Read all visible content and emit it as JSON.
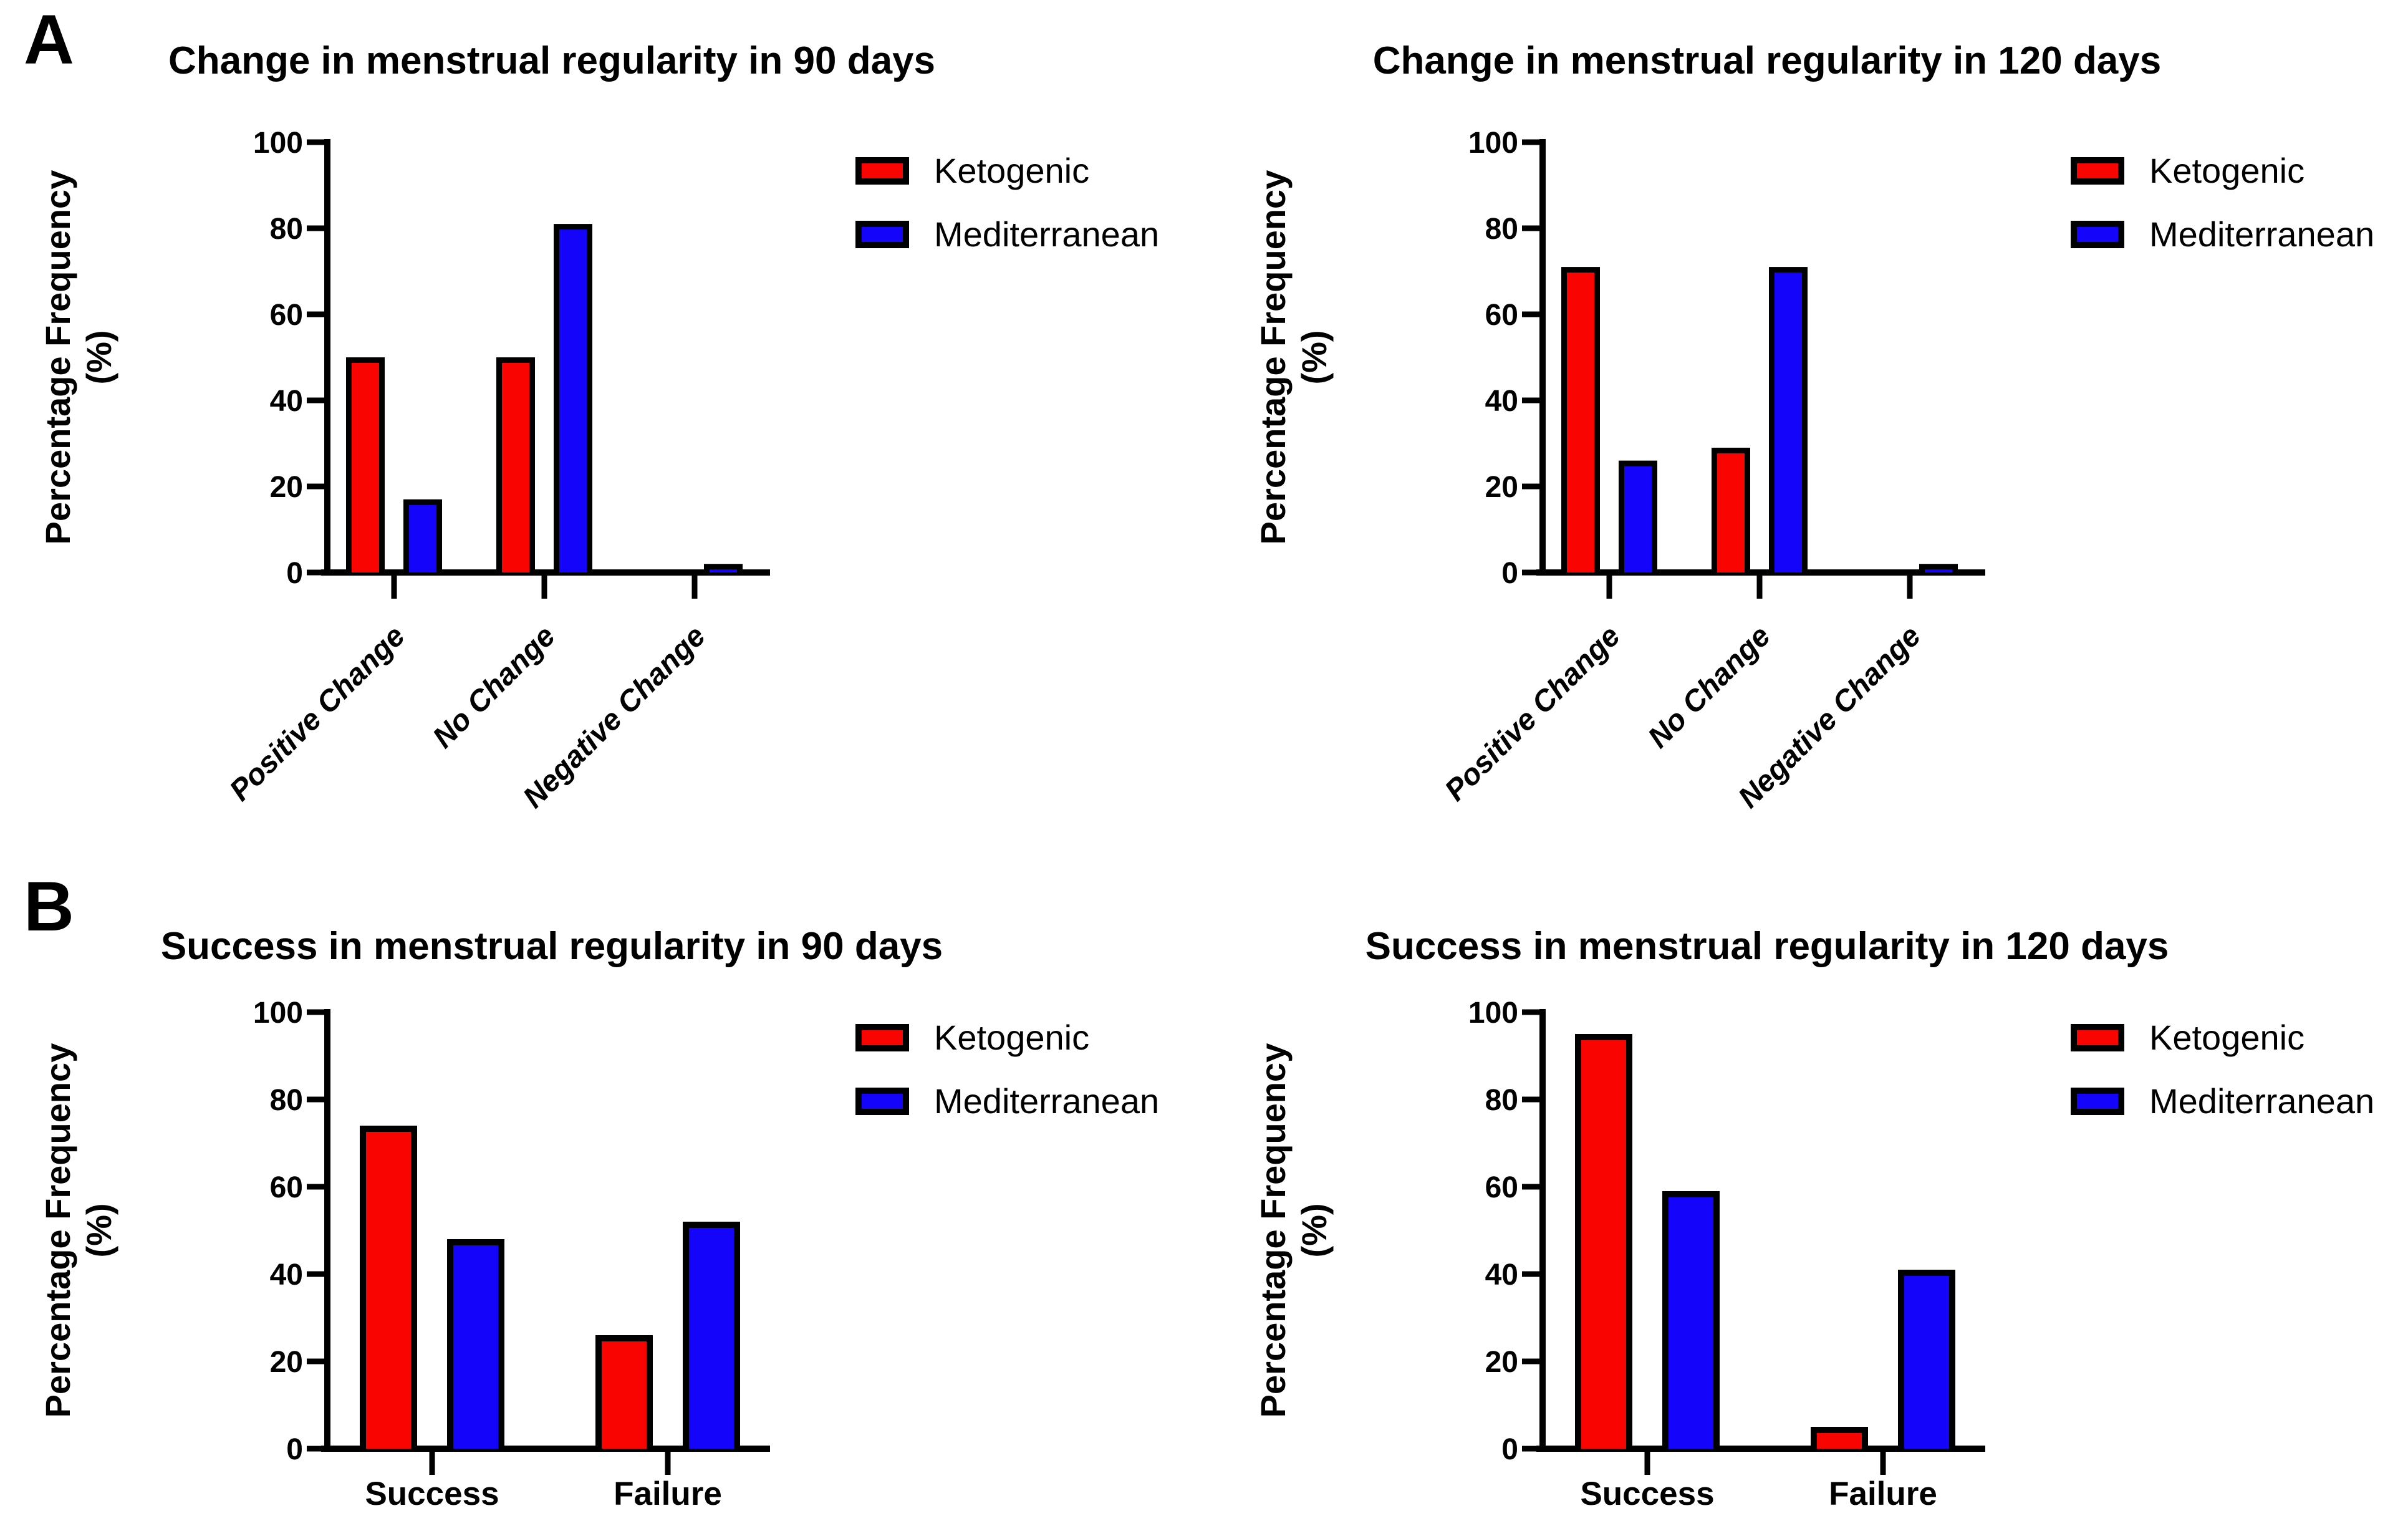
{
  "figure": {
    "background": "#FFFFFF",
    "panels": [
      {
        "label": "A"
      },
      {
        "label": "B"
      }
    ],
    "legend": {
      "position": "right",
      "items": [
        {
          "label": "Ketogenic",
          "color": "#F90400"
        },
        {
          "label": "Mediterranean",
          "color": "#1404F9"
        }
      ],
      "outline_color": "#000000"
    },
    "y_axis": {
      "label_line1": "Percentage Frequency",
      "label_line2": "(%)",
      "ticks": [
        0,
        20,
        40,
        60,
        80,
        100
      ],
      "range": [
        0,
        100
      ]
    }
  },
  "chart_data": [
    {
      "type": "bar",
      "position": "top-left",
      "panel": "A",
      "title": "Change in menstrual regularity in 90 days",
      "xlabel": "",
      "ylabel": "Percentage Frequency (%)",
      "ylim": [
        0,
        100
      ],
      "yticks": [
        0,
        20,
        40,
        60,
        80,
        100
      ],
      "grid": false,
      "legend_position": "right",
      "x_label_rotation_deg": 45,
      "categories": [
        "Positive Change",
        "No Change",
        "Negative Change"
      ],
      "series": [
        {
          "name": "Ketogenic",
          "color": "#F90400",
          "values": [
            50,
            50,
            0
          ]
        },
        {
          "name": "Mediterranean",
          "color": "#1404F9",
          "values": [
            17,
            81,
            2
          ]
        }
      ],
      "bar_outline_color": "#000000"
    },
    {
      "type": "bar",
      "position": "top-right",
      "panel": "A",
      "title": "Change in menstrual regularity in 120 days",
      "xlabel": "",
      "ylabel": "Percentage Frequency (%)",
      "ylim": [
        0,
        100
      ],
      "yticks": [
        0,
        20,
        40,
        60,
        80,
        100
      ],
      "grid": false,
      "legend_position": "right",
      "x_label_rotation_deg": 45,
      "categories": [
        "Positive Change",
        "No Change",
        "Negative Change"
      ],
      "series": [
        {
          "name": "Ketogenic",
          "color": "#F90400",
          "values": [
            71,
            29,
            0
          ]
        },
        {
          "name": "Mediterranean",
          "color": "#1404F9",
          "values": [
            26,
            71,
            2
          ]
        }
      ],
      "bar_outline_color": "#000000"
    },
    {
      "type": "bar",
      "position": "bottom-left",
      "panel": "B",
      "title": "Success in menstrual regularity in 90 days",
      "xlabel": "",
      "ylabel": "Percentage Frequency (%)",
      "ylim": [
        0,
        100
      ],
      "yticks": [
        0,
        20,
        40,
        60,
        80,
        100
      ],
      "grid": false,
      "legend_position": "right",
      "x_label_rotation_deg": 0,
      "categories": [
        "Success",
        "Failure"
      ],
      "series": [
        {
          "name": "Ketogenic",
          "color": "#F90400",
          "values": [
            74,
            26
          ]
        },
        {
          "name": "Mediterranean",
          "color": "#1404F9",
          "values": [
            48,
            52
          ]
        }
      ],
      "bar_outline_color": "#000000"
    },
    {
      "type": "bar",
      "position": "bottom-right",
      "panel": "B",
      "title": "Success in menstrual regularity in 120 days",
      "xlabel": "",
      "ylabel": "Percentage Frequency (%)",
      "ylim": [
        0,
        100
      ],
      "yticks": [
        0,
        20,
        40,
        60,
        80,
        100
      ],
      "grid": false,
      "legend_position": "right",
      "x_label_rotation_deg": 0,
      "categories": [
        "Success",
        "Failure"
      ],
      "series": [
        {
          "name": "Ketogenic",
          "color": "#F90400",
          "values": [
            95,
            5
          ]
        },
        {
          "name": "Mediterranean",
          "color": "#1404F9",
          "values": [
            59,
            41
          ]
        }
      ],
      "bar_outline_color": "#000000"
    }
  ]
}
